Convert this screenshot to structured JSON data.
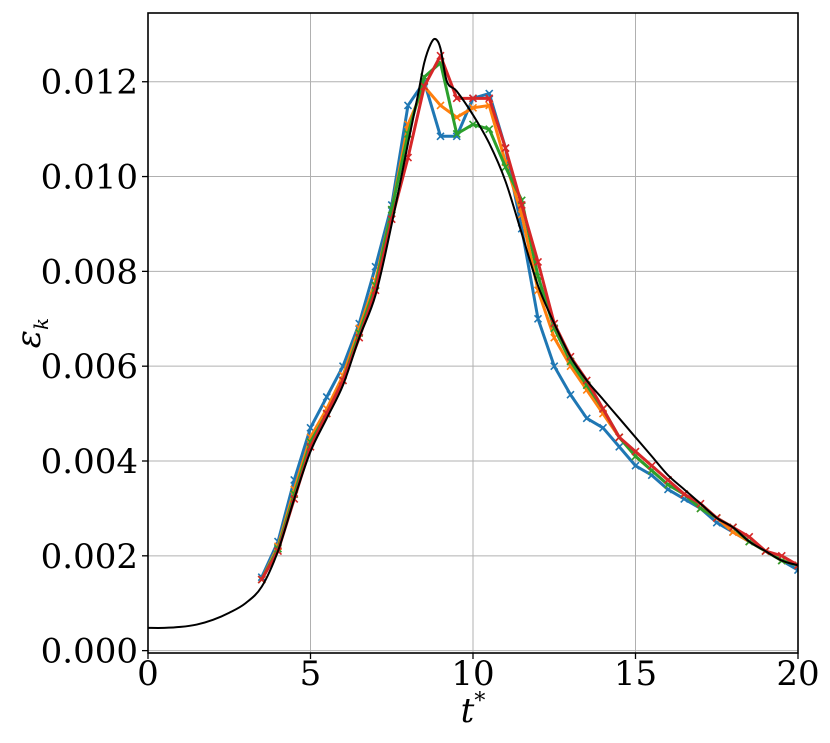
{
  "chart_data": {
    "type": "line",
    "xlabel": "t",
    "xlabel_sup": "*",
    "ylabel": "ε",
    "ylabel_sub": "k",
    "xlim": [
      0,
      20
    ],
    "ylim": [
      -5e-05,
      0.01345
    ],
    "grid": true,
    "legend": "none",
    "xticks": [
      0,
      5,
      10,
      15,
      20
    ],
    "xtick_labels": [
      "0",
      "5",
      "10",
      "15",
      "20"
    ],
    "yticks": [
      0.0,
      0.002,
      0.004,
      0.006,
      0.008,
      0.01,
      0.012
    ],
    "ytick_labels": [
      "0.000",
      "0.002",
      "0.004",
      "0.006",
      "0.008",
      "0.010",
      "0.012"
    ],
    "colors": {
      "reference": "#000000",
      "blue": "#1f77b4",
      "orange": "#ff7f0e",
      "green": "#2ca02c",
      "red": "#d62728",
      "grid": "#b0b0b0"
    },
    "series": [
      {
        "key": "reference",
        "color": "#000000",
        "marker": "none",
        "x": [
          0,
          0.5,
          1.0,
          1.5,
          2.0,
          2.5,
          3.0,
          3.5,
          4.0,
          4.5,
          5.0,
          5.5,
          6.0,
          6.5,
          7.0,
          7.5,
          8.0,
          8.3,
          8.5,
          8.7,
          8.85,
          9.0,
          9.2,
          9.5,
          10.0,
          10.5,
          11.0,
          11.5,
          12.0,
          12.5,
          13.0,
          13.5,
          14.0,
          14.5,
          15.0,
          15.5,
          16.0,
          16.5,
          17.0,
          17.5,
          18.0,
          18.5,
          19.0,
          19.5,
          20.0
        ],
        "y": [
          0.00048,
          0.00048,
          0.0005,
          0.00055,
          0.00065,
          0.0008,
          0.001,
          0.00135,
          0.0021,
          0.0032,
          0.0042,
          0.0049,
          0.0056,
          0.0066,
          0.0075,
          0.009,
          0.0107,
          0.0117,
          0.0124,
          0.0128,
          0.0129,
          0.0127,
          0.012,
          0.0118,
          0.0113,
          0.0107,
          0.0099,
          0.0088,
          0.0077,
          0.0069,
          0.0062,
          0.0057,
          0.0053,
          0.0049,
          0.0045,
          0.0041,
          0.0037,
          0.0034,
          0.0031,
          0.0028,
          0.0026,
          0.0023,
          0.0021,
          0.0019,
          0.0018
        ]
      },
      {
        "key": "blue",
        "color": "#1f77b4",
        "marker": "x",
        "x": [
          3.5,
          4.0,
          4.5,
          5.0,
          5.5,
          6.0,
          6.5,
          7.0,
          7.5,
          8.0,
          8.5,
          9.0,
          9.5,
          10.0,
          10.5,
          11.0,
          11.5,
          12.0,
          12.5,
          13.0,
          13.5,
          14.0,
          14.5,
          15.0,
          15.5,
          16.0,
          16.5,
          17.0,
          17.5,
          18.0,
          18.5,
          19.0,
          19.5,
          20.0
        ],
        "y": [
          0.00155,
          0.0023,
          0.0036,
          0.0047,
          0.00535,
          0.006,
          0.0069,
          0.0081,
          0.0094,
          0.0115,
          0.012,
          0.01085,
          0.01085,
          0.01165,
          0.01175,
          0.0106,
          0.0089,
          0.007,
          0.006,
          0.0054,
          0.0049,
          0.0047,
          0.0043,
          0.0039,
          0.0037,
          0.0034,
          0.0032,
          0.003,
          0.0027,
          0.0025,
          0.0023,
          0.0021,
          0.0019,
          0.0017
        ]
      },
      {
        "key": "orange",
        "color": "#ff7f0e",
        "marker": "x",
        "x": [
          3.5,
          4.0,
          4.5,
          5.0,
          5.5,
          6.0,
          6.5,
          7.0,
          7.5,
          8.0,
          8.5,
          9.0,
          9.5,
          10.0,
          10.5,
          11.0,
          11.5,
          12.0,
          12.5,
          13.0,
          13.5,
          14.0,
          14.5,
          15.0,
          15.5,
          16.0,
          16.5,
          17.0,
          17.5,
          18.0,
          18.5,
          19.0,
          19.5,
          20.0
        ],
        "y": [
          0.0015,
          0.0022,
          0.0034,
          0.0045,
          0.0051,
          0.0058,
          0.0068,
          0.0078,
          0.0093,
          0.0111,
          0.0119,
          0.0115,
          0.01125,
          0.01145,
          0.0115,
          0.0103,
          0.0092,
          0.0076,
          0.0066,
          0.006,
          0.0055,
          0.005,
          0.0045,
          0.0041,
          0.0038,
          0.0035,
          0.0033,
          0.003,
          0.0028,
          0.0025,
          0.0023,
          0.0021,
          0.0019,
          0.0018
        ]
      },
      {
        "key": "green",
        "color": "#2ca02c",
        "marker": "x",
        "x": [
          3.5,
          4.0,
          4.5,
          5.0,
          5.5,
          6.0,
          6.5,
          7.0,
          7.5,
          8.0,
          8.5,
          9.0,
          9.5,
          10.0,
          10.5,
          11.0,
          11.5,
          12.0,
          12.5,
          13.0,
          13.5,
          14.0,
          14.5,
          15.0,
          15.5,
          16.0,
          16.5,
          17.0,
          17.5,
          18.0,
          18.5,
          19.0,
          19.5,
          20.0
        ],
        "y": [
          0.0015,
          0.00215,
          0.0033,
          0.0044,
          0.005,
          0.0057,
          0.0067,
          0.0077,
          0.0093,
          0.0109,
          0.0121,
          0.0124,
          0.0109,
          0.0111,
          0.011,
          0.0102,
          0.0095,
          0.0079,
          0.0068,
          0.0061,
          0.0056,
          0.0051,
          0.0045,
          0.0041,
          0.0038,
          0.0035,
          0.0033,
          0.003,
          0.0028,
          0.0026,
          0.0023,
          0.0021,
          0.0019,
          0.0018
        ]
      },
      {
        "key": "red",
        "color": "#d62728",
        "marker": "x",
        "x": [
          3.5,
          4.0,
          4.5,
          5.0,
          5.5,
          6.0,
          6.5,
          7.0,
          7.5,
          8.0,
          8.5,
          9.0,
          9.5,
          10.0,
          10.5,
          11.0,
          11.5,
          12.0,
          12.5,
          13.0,
          13.5,
          14.0,
          14.5,
          15.0,
          15.5,
          16.0,
          16.5,
          17.0,
          17.5,
          18.0,
          18.5,
          19.0,
          19.5,
          20.0
        ],
        "y": [
          0.0015,
          0.0021,
          0.0032,
          0.0043,
          0.005,
          0.0057,
          0.0066,
          0.0076,
          0.0091,
          0.0104,
          0.0119,
          0.01255,
          0.01165,
          0.01165,
          0.01165,
          0.0106,
          0.0094,
          0.0082,
          0.0069,
          0.0062,
          0.0057,
          0.0051,
          0.0045,
          0.0042,
          0.0039,
          0.0036,
          0.0033,
          0.0031,
          0.0028,
          0.0026,
          0.0024,
          0.0021,
          0.002,
          0.0018
        ]
      }
    ]
  }
}
